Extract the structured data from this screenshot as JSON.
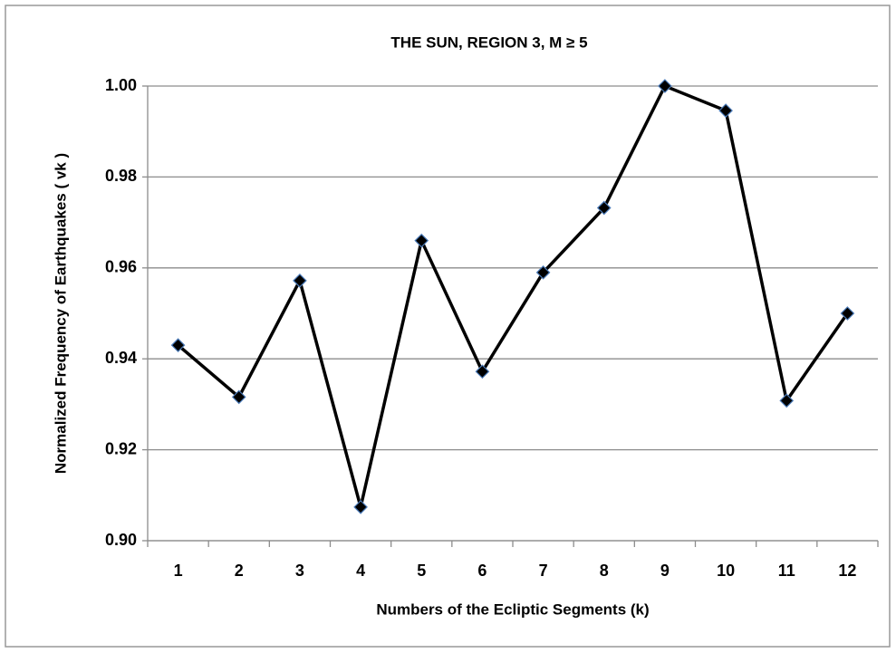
{
  "chart_data": {
    "type": "line",
    "title": "THE  SUN,  REGION 3,  M ≥ 5",
    "x_label": "Numbers of the Ecliptic Segments (k)",
    "y_label": "Normalized  Frequency  of  Earthquakes  ( vk )",
    "categories": [
      "1",
      "2",
      "3",
      "4",
      "5",
      "6",
      "7",
      "8",
      "9",
      "10",
      "11",
      "12"
    ],
    "series": [
      {
        "color": "#000000",
        "values": [
          0.943,
          0.9316,
          0.9572,
          0.9074,
          0.966,
          0.9372,
          0.959,
          0.9732,
          1.0,
          0.9946,
          0.9308,
          0.95
        ]
      }
    ],
    "ylim": [
      0.9,
      1.0
    ],
    "yticks": [
      {
        "value": 0.9,
        "label": "0.90"
      },
      {
        "value": 0.92,
        "label": "0.92"
      },
      {
        "value": 0.94,
        "label": "0.94"
      },
      {
        "value": 0.96,
        "label": "0.96"
      },
      {
        "value": 0.98,
        "label": "0.98"
      },
      {
        "value": 1.0,
        "label": "1.00"
      }
    ],
    "grid": true
  }
}
